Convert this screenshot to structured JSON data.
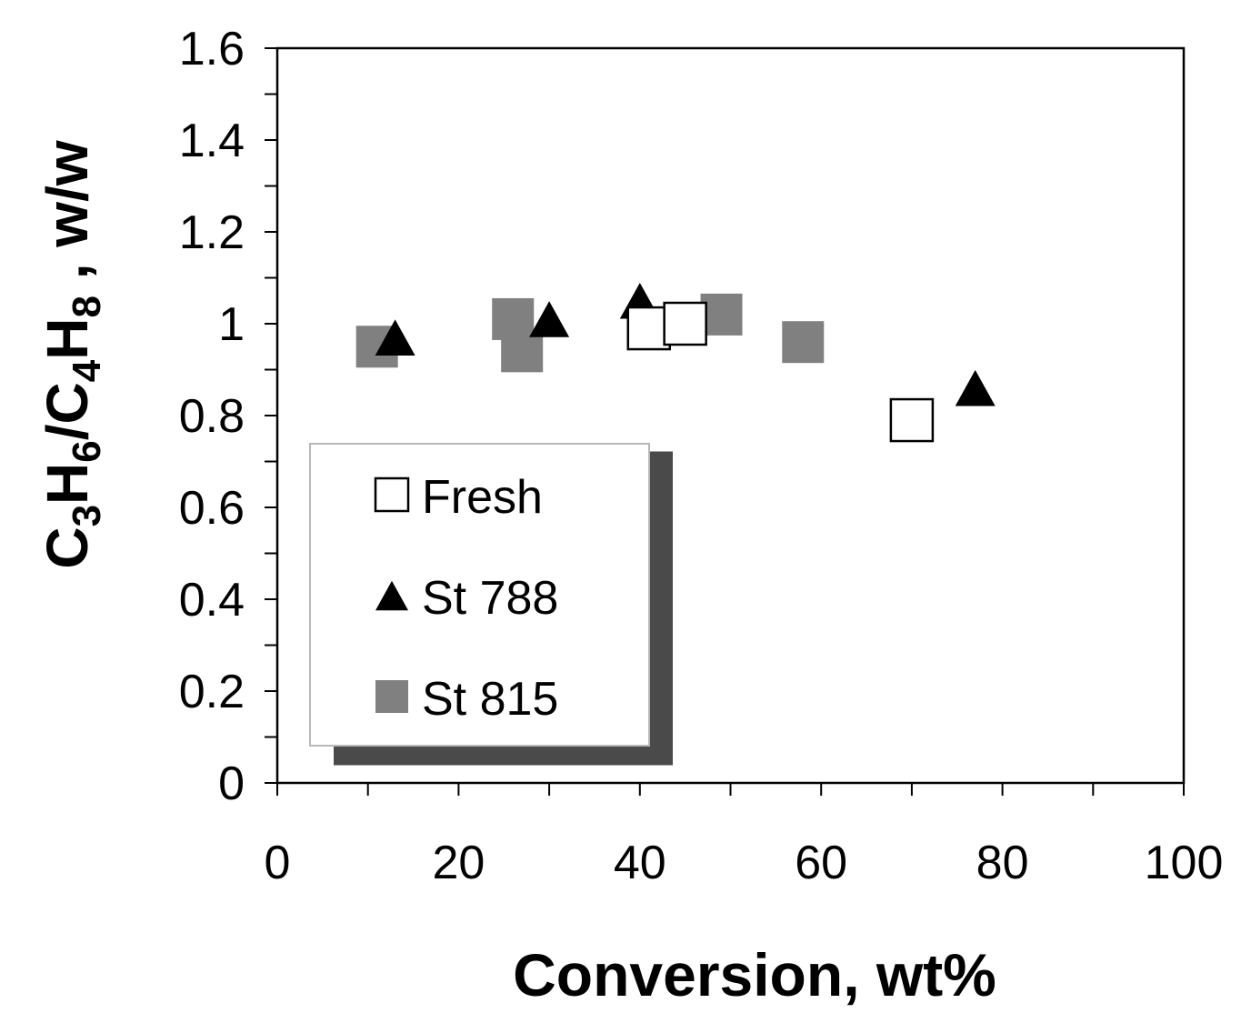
{
  "chart_data": {
    "type": "scatter",
    "title": "",
    "xlabel": "Conversion, wt%",
    "ylabel": {
      "parts": [
        {
          "text": "C",
          "sub": false
        },
        {
          "text": "3",
          "sub": true
        },
        {
          "text": "H",
          "sub": false
        },
        {
          "text": "6",
          "sub": true
        },
        {
          "text": "/C",
          "sub": false
        },
        {
          "text": "4",
          "sub": true
        },
        {
          "text": "H",
          "sub": false
        },
        {
          "text": "8",
          "sub": true
        },
        {
          "text": " , w/w",
          "sub": false
        }
      ]
    },
    "xlim": [
      0,
      100
    ],
    "ylim": [
      0,
      1.6
    ],
    "x_ticks": [
      0,
      20,
      40,
      60,
      80,
      100
    ],
    "x_tick_labels": [
      "0",
      "20",
      "40",
      "60",
      "80",
      "100"
    ],
    "y_ticks": [
      0,
      0.2,
      0.4,
      0.6,
      0.8,
      1.0,
      1.2,
      1.4,
      1.6
    ],
    "y_tick_labels": [
      "0",
      "0.2",
      "0.4",
      "0.6",
      "0.8",
      "1",
      "1.2",
      "1.4",
      "1.6"
    ],
    "grid": false,
    "legend_position": "bottom-left",
    "series": [
      {
        "name": "Fresh",
        "marker": "open-square",
        "color": "#000000",
        "points": [
          [
            41,
            0.99
          ],
          [
            45,
            1.0
          ],
          [
            70,
            0.79
          ]
        ]
      },
      {
        "name": "St 788",
        "marker": "triangle",
        "color": "#000000",
        "points": [
          [
            13,
            0.97
          ],
          [
            30,
            1.01
          ],
          [
            40,
            1.05
          ],
          [
            77,
            0.86
          ]
        ]
      },
      {
        "name": "St 815",
        "marker": "filled-square",
        "color": "#808080",
        "points": [
          [
            11,
            0.95
          ],
          [
            26,
            1.01
          ],
          [
            27,
            0.94
          ],
          [
            49,
            1.02
          ],
          [
            58,
            0.96
          ]
        ]
      }
    ]
  }
}
